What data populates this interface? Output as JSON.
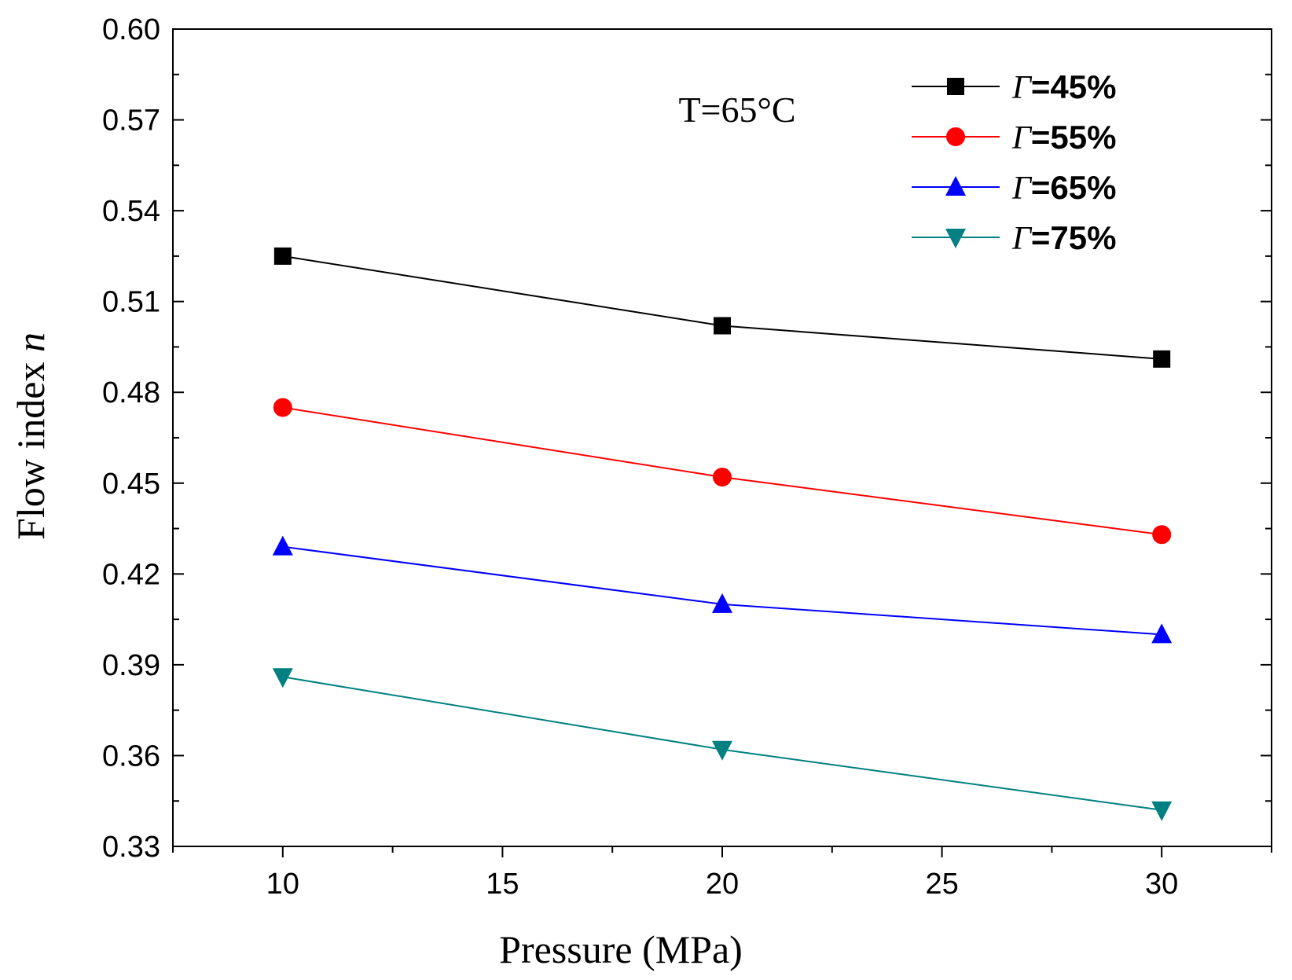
{
  "chart_data": {
    "type": "line",
    "title": "",
    "annotation": "T=65°C",
    "xlabel": "Pressure  (MPa)",
    "ylabel": "Flow index",
    "ylabel_italic": "n",
    "xlim": [
      7.5,
      32.5
    ],
    "ylim": [
      0.33,
      0.6
    ],
    "xticks": [
      10,
      15,
      20,
      25,
      30
    ],
    "xtick_labels": [
      "10",
      "15",
      "20",
      "25",
      "30"
    ],
    "yticks": [
      0.33,
      0.36,
      0.39,
      0.42,
      0.45,
      0.48,
      0.51,
      0.54,
      0.57,
      0.6
    ],
    "ytick_labels": [
      "0.33",
      "0.36",
      "0.39",
      "0.42",
      "0.45",
      "0.48",
      "0.51",
      "0.54",
      "0.57",
      "0.60"
    ],
    "grid": false,
    "legend_position": "top-right",
    "x": [
      10,
      20,
      30
    ],
    "series": [
      {
        "name": "Γ=45%",
        "symbol": "Γ",
        "suffix": "=45%",
        "color": "#000000",
        "marker": "square",
        "values": [
          0.525,
          0.502,
          0.491
        ]
      },
      {
        "name": "Γ=55%",
        "symbol": "Γ",
        "suffix": "=55%",
        "color": "#ff0000",
        "marker": "circle",
        "values": [
          0.475,
          0.452,
          0.433
        ]
      },
      {
        "name": "Γ=65%",
        "symbol": "Γ",
        "suffix": "=65%",
        "color": "#0000ff",
        "marker": "triangle-up",
        "values": [
          0.429,
          0.41,
          0.4
        ]
      },
      {
        "name": "Γ=75%",
        "symbol": "Γ",
        "suffix": "=75%",
        "color": "#008080",
        "marker": "triangle-down",
        "values": [
          0.386,
          0.362,
          0.342
        ]
      }
    ]
  }
}
